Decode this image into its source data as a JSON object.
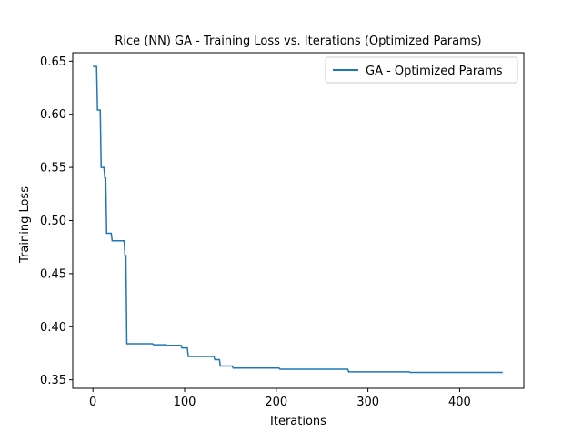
{
  "chart_data": {
    "type": "line",
    "title": "Rice (NN) GA - Training Loss vs. Iterations (Optimized Params)",
    "xlabel": "Iterations",
    "ylabel": "Training Loss",
    "xlim": [
      -22,
      470
    ],
    "ylim": [
      0.342,
      0.658
    ],
    "xticks": [
      0,
      100,
      200,
      300,
      400
    ],
    "xtick_labels": [
      "0",
      "100",
      "200",
      "300",
      "400"
    ],
    "yticks": [
      0.35,
      0.4,
      0.45,
      0.5,
      0.55,
      0.6,
      0.65
    ],
    "ytick_labels": [
      "0.35",
      "0.40",
      "0.45",
      "0.50",
      "0.55",
      "0.60",
      "0.65"
    ],
    "grid": false,
    "legend": {
      "position": "upper right"
    },
    "series": [
      {
        "name": "GA - Optimized Params",
        "color": "#1f77b4",
        "step": true,
        "x": [
          0,
          4,
          5,
          8,
          9,
          12,
          13,
          14,
          15,
          20,
          21,
          34,
          35,
          36,
          37,
          65,
          66,
          80,
          81,
          96,
          97,
          103,
          104,
          132,
          133,
          138,
          139,
          152,
          153,
          203,
          204,
          278,
          279,
          345,
          346,
          447
        ],
        "y": [
          0.645,
          0.645,
          0.604,
          0.604,
          0.55,
          0.55,
          0.54,
          0.54,
          0.488,
          0.488,
          0.481,
          0.481,
          0.467,
          0.467,
          0.384,
          0.384,
          0.383,
          0.383,
          0.3825,
          0.3825,
          0.38,
          0.38,
          0.372,
          0.372,
          0.369,
          0.369,
          0.363,
          0.363,
          0.361,
          0.361,
          0.36,
          0.36,
          0.3575,
          0.3575,
          0.357,
          0.357
        ]
      }
    ]
  }
}
